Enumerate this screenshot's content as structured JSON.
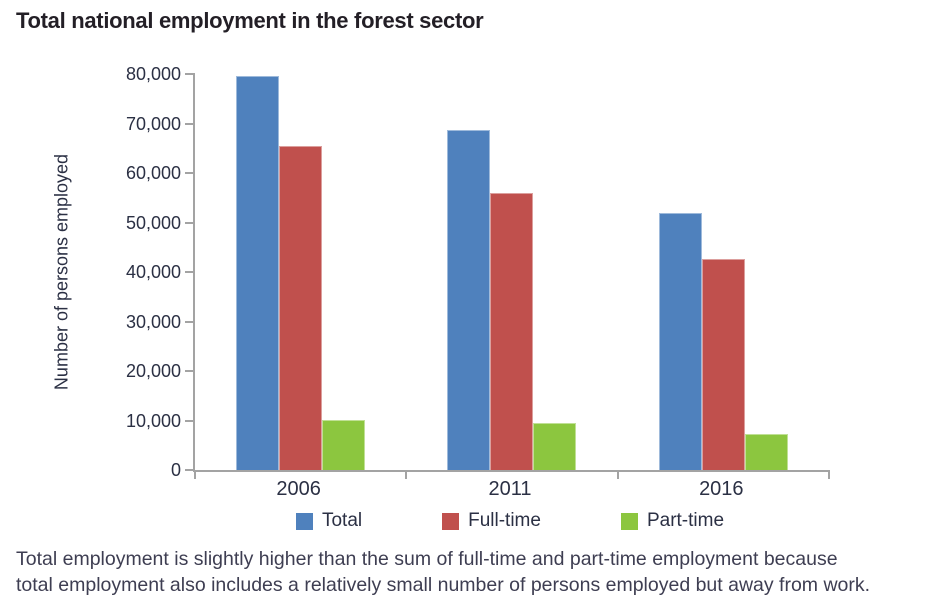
{
  "title": "Total national employment in the forest sector",
  "caption_lines": [
    "Total employment is slightly higher than the sum of full-time and part-time employment because",
    "total employment also includes a relatively small number of persons employed but away from work."
  ],
  "chart_data": {
    "type": "bar",
    "title": "Total national employment in the forest sector",
    "xlabel": "",
    "ylabel": "Number of persons employed",
    "categories": [
      "2006",
      "2011",
      "2016"
    ],
    "series": [
      {
        "name": "Total",
        "color": "#4F81BD",
        "values": [
          79700,
          68600,
          51900
        ]
      },
      {
        "name": "Full-time",
        "color": "#C0504D",
        "values": [
          65400,
          56000,
          42700
        ]
      },
      {
        "name": "Part-time",
        "color": "#8CC63F",
        "values": [
          10200,
          9500,
          7300
        ]
      }
    ],
    "ylim": [
      0,
      80000
    ],
    "ytick_step": 10000,
    "ytick_labels": [
      "0",
      "10,000",
      "20,000",
      "30,000",
      "40,000",
      "50,000",
      "60,000",
      "70,000",
      "80,000"
    ],
    "grid": false,
    "legend_position": "bottom"
  },
  "colors": {
    "axis": "#a3a3a3",
    "tick_text": "#2b3044",
    "title_text": "#231f26",
    "caption_text": "#3e3e52"
  }
}
